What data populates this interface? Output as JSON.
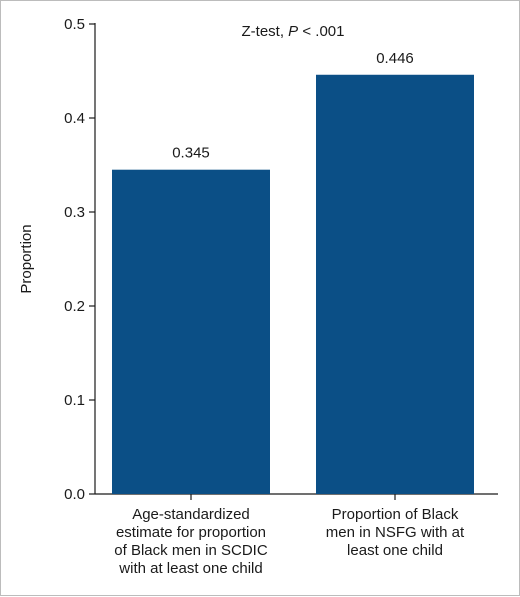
{
  "chart_data": {
    "type": "bar",
    "categories": [
      [
        "Age-standardized",
        "estimate for proportion",
        "of Black men in SCDIC",
        "with at least one child"
      ],
      [
        "Proportion of Black",
        "men in NSFG with at",
        "least one child"
      ]
    ],
    "values": [
      0.345,
      0.446
    ],
    "value_labels": [
      "0.345",
      "0.446"
    ],
    "ylabel": "Proportion",
    "xlabel": "",
    "ylim": [
      0,
      0.5
    ],
    "yticks": [
      0.0,
      0.1,
      0.2,
      0.3,
      0.4,
      0.5
    ],
    "ytick_labels": [
      "0.0",
      "0.1",
      "0.2",
      "0.3",
      "0.4",
      "0.5"
    ],
    "annotation": {
      "prefix": "Z-test, ",
      "italic": "P",
      "suffix": " < .001"
    },
    "bar_color": "#0b4f86",
    "grid": false,
    "legend": "none"
  }
}
